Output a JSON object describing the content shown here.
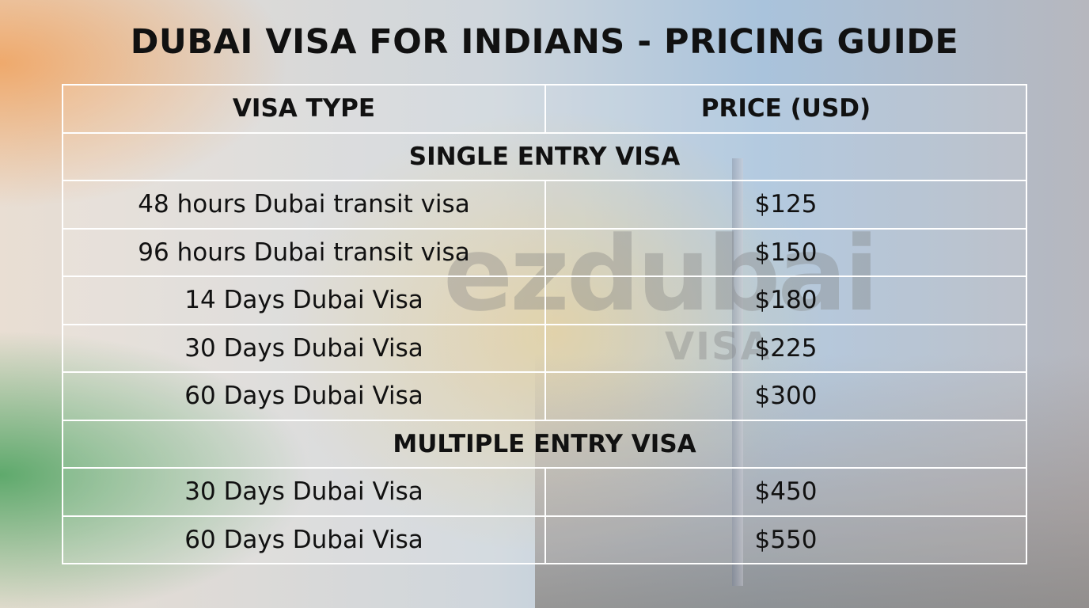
{
  "title": "DUBAI VISA FOR INDIANS - PRICING GUIDE",
  "logo": {
    "text": "ezdubai",
    "sub": "VISA"
  },
  "table": {
    "headers": [
      "VISA TYPE",
      "PRICE (USD)"
    ],
    "sections": [
      {
        "label": "SINGLE ENTRY VISA",
        "rows": [
          {
            "type": "48 hours Dubai transit visa",
            "price": "$125"
          },
          {
            "type": "96 hours Dubai transit visa",
            "price": "$150"
          },
          {
            "type": "14 Days Dubai Visa",
            "price": "$180"
          },
          {
            "type": "30 Days Dubai Visa",
            "price": "$225"
          },
          {
            "type": "60 Days Dubai Visa",
            "price": "$300"
          }
        ]
      },
      {
        "label": "MULTIPLE ENTRY VISA",
        "rows": [
          {
            "type": "30 Days Dubai Visa",
            "price": "$450"
          },
          {
            "type": "60 Days Dubai Visa",
            "price": "$550"
          }
        ]
      }
    ]
  }
}
